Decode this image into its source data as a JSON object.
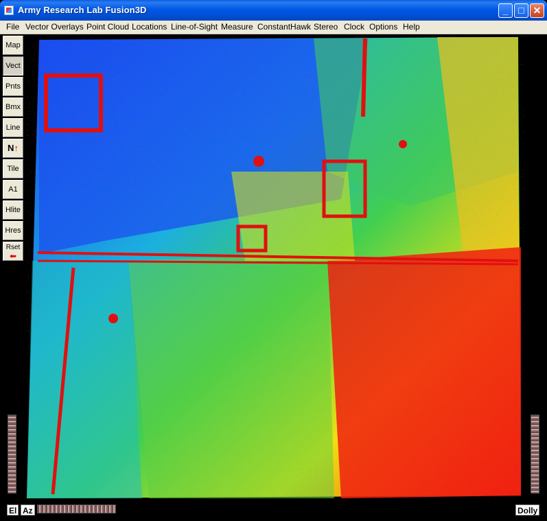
{
  "window": {
    "title": "Army Research Lab Fusion3D",
    "minimize_label": "_",
    "maximize_label": "□",
    "close_label": "✕"
  },
  "menu": {
    "items": [
      "File",
      "Vector Overlays",
      "Point Cloud",
      "Locations",
      "Line-of-Sight",
      "Measure",
      "ConstantHawk",
      "Stereo",
      "Clock",
      "Options",
      "Help"
    ]
  },
  "toolbar": {
    "map": "Map",
    "vect": "Vect",
    "pnts": "Pnts",
    "bmx": "Bmx",
    "line": "Line",
    "north": "N",
    "north_arrow": "↑",
    "tile": "Tile",
    "a1": "A1",
    "hlite": "Hlite",
    "hres": "Hres",
    "rset": "Rset",
    "rset_arrow": "⬅"
  },
  "bottom": {
    "el": "El",
    "az": "Az",
    "dolly": "Dolly"
  },
  "colors": {
    "titlebar": "#0058e6",
    "menubar": "#ece9d8",
    "viewport_bg": "#000000"
  },
  "icons": {
    "app": "fusion3d-app-icon",
    "north": "north-arrow-icon",
    "reset": "reset-arrow-icon"
  }
}
